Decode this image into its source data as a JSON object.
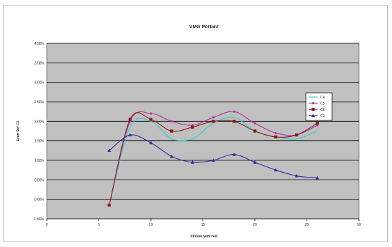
{
  "chart_data": {
    "type": "line",
    "title": "VMG Portant",
    "xlabel": "Vitesse vent réel",
    "ylabel": "Ecart Ref C0",
    "xlim": [
      0,
      30
    ],
    "ylim": [
      -0.005,
      0.04
    ],
    "x_ticks": [
      0,
      5,
      10,
      15,
      20,
      25,
      30
    ],
    "y_ticks": [
      "-0.50%",
      "0.00%",
      "0.50%",
      "1.00%",
      "1.50%",
      "2.00%",
      "2.50%",
      "3.00%",
      "3.50%",
      "4.00%"
    ],
    "y_tick_values": [
      -0.005,
      0,
      0.005,
      0.01,
      0.015,
      0.02,
      0.025,
      0.03,
      0.035,
      0.04
    ],
    "grid": true,
    "legend_position": "right",
    "plot_background": "#c0c0c0",
    "series": [
      {
        "name": "C4",
        "color": "#33cccc",
        "marker": "none",
        "x": [
          6,
          8,
          10,
          12,
          14,
          16,
          18,
          20,
          22,
          24,
          26
        ],
        "y": [
          -0.0015,
          0.0185,
          0.02,
          0.0155,
          0.0155,
          0.0195,
          0.021,
          0.0175,
          0.016,
          0.0155,
          0.0175
        ]
      },
      {
        "name": "C5",
        "color": "#b0309e",
        "marker": "dot",
        "x": [
          6,
          8,
          10,
          12,
          14,
          16,
          18,
          20,
          22,
          24,
          26
        ],
        "y": [
          -0.0015,
          0.02,
          0.022,
          0.02,
          0.019,
          0.021,
          0.0225,
          0.0195,
          0.017,
          0.0165,
          0.019
        ]
      },
      {
        "name": "C6",
        "color": "#8b1a1a",
        "marker": "square",
        "x": [
          6,
          8,
          10,
          12,
          14,
          16,
          18,
          20,
          22,
          24,
          26
        ],
        "y": [
          -0.0015,
          0.0205,
          0.0205,
          0.0175,
          0.0185,
          0.02,
          0.02,
          0.0175,
          0.016,
          0.0165,
          0.0195
        ]
      },
      {
        "name": "C1",
        "color": "#2a2aa0",
        "marker": "triangle",
        "x": [
          6,
          8,
          10,
          12,
          14,
          16,
          18,
          20,
          22,
          24,
          26
        ],
        "y": [
          0.0125,
          0.0165,
          0.0145,
          0.011,
          0.0095,
          0.01,
          0.0115,
          0.0095,
          0.0075,
          0.006,
          0.0055
        ]
      }
    ]
  }
}
